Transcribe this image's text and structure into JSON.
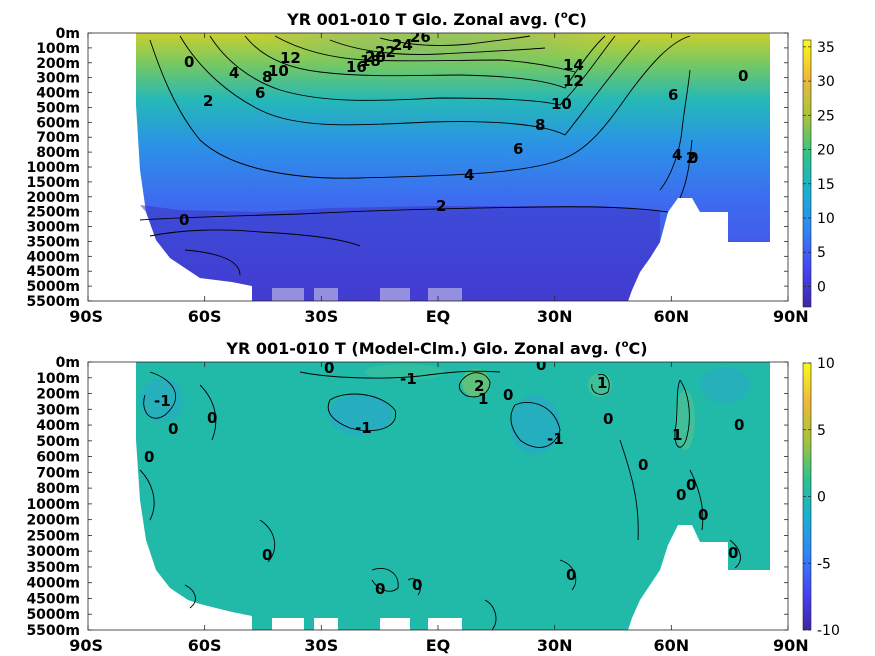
{
  "figure": {
    "kind": "zonal-average ocean temperature contour plots"
  },
  "chart_data": [
    {
      "type": "heatmap",
      "title": "YR 001-010 T Glo. Zonal avg. (",
      "title_sup": "o",
      "title_tail": "C)",
      "x_ticks": [
        "90S",
        "60S",
        "30S",
        "EQ",
        "30N",
        "60N",
        "90N"
      ],
      "x_values": [
        -90,
        -60,
        -30,
        0,
        30,
        60,
        90
      ],
      "y_ticks": [
        "0m",
        "100m",
        "200m",
        "300m",
        "400m",
        "500m",
        "600m",
        "700m",
        "800m",
        "1000m",
        "1500m",
        "2000m",
        "2500m",
        "3000m",
        "3500m",
        "4000m",
        "4500m",
        "5000m",
        "5500m"
      ],
      "colorbar": {
        "min": -3,
        "max": 36,
        "ticks": [
          "0",
          "5",
          "10",
          "15",
          "20",
          "25",
          "30",
          "35"
        ],
        "tick_values": [
          0,
          5,
          10,
          15,
          20,
          25,
          30,
          35
        ]
      },
      "contour_labels": [
        "26",
        "24",
        "22",
        "20",
        "18",
        "16",
        "14",
        "12",
        "10",
        "8",
        "6",
        "4",
        "2",
        "0",
        "0",
        "4",
        "2",
        "6",
        "8",
        "10",
        "12",
        "0",
        "4",
        "6",
        "2",
        "0"
      ],
      "colormap": [
        "#3e26a8",
        "#4743f8",
        "#2e87f7",
        "#17b1d3",
        "#2ec38a",
        "#a6c33a",
        "#f1b93a",
        "#f9fb15"
      ]
    },
    {
      "type": "heatmap",
      "title": "YR 001-010 T (Model-Clm.) Glo. Zonal avg. (",
      "title_sup": "o",
      "title_tail": "C)",
      "x_ticks": [
        "90S",
        "60S",
        "30S",
        "EQ",
        "30N",
        "60N",
        "90N"
      ],
      "x_values": [
        -90,
        -60,
        -30,
        0,
        30,
        60,
        90
      ],
      "y_ticks": [
        "0m",
        "100m",
        "200m",
        "300m",
        "400m",
        "500m",
        "600m",
        "700m",
        "800m",
        "1000m",
        "2000m",
        "2500m",
        "3000m",
        "3500m",
        "4000m",
        "4500m",
        "5000m",
        "5500m"
      ],
      "colorbar": {
        "min": -10,
        "max": 10,
        "ticks": [
          "10",
          "5",
          "0",
          "-5",
          "-10"
        ],
        "tick_values": [
          10,
          5,
          0,
          -5,
          -10
        ]
      },
      "contour_labels": [
        "0",
        "0",
        "-1",
        "-1",
        "1",
        "2",
        "1",
        "0",
        "-1",
        "-1",
        "0",
        "0",
        "0",
        "1",
        "0",
        "0",
        "0",
        "0",
        "0",
        "0",
        "0",
        "0",
        "0",
        "0",
        "0"
      ],
      "colormap": [
        "#3e26a8",
        "#4743f8",
        "#2e87f7",
        "#17b1d3",
        "#2ec38a",
        "#a6c33a",
        "#f1b93a",
        "#f9fb15"
      ]
    }
  ]
}
